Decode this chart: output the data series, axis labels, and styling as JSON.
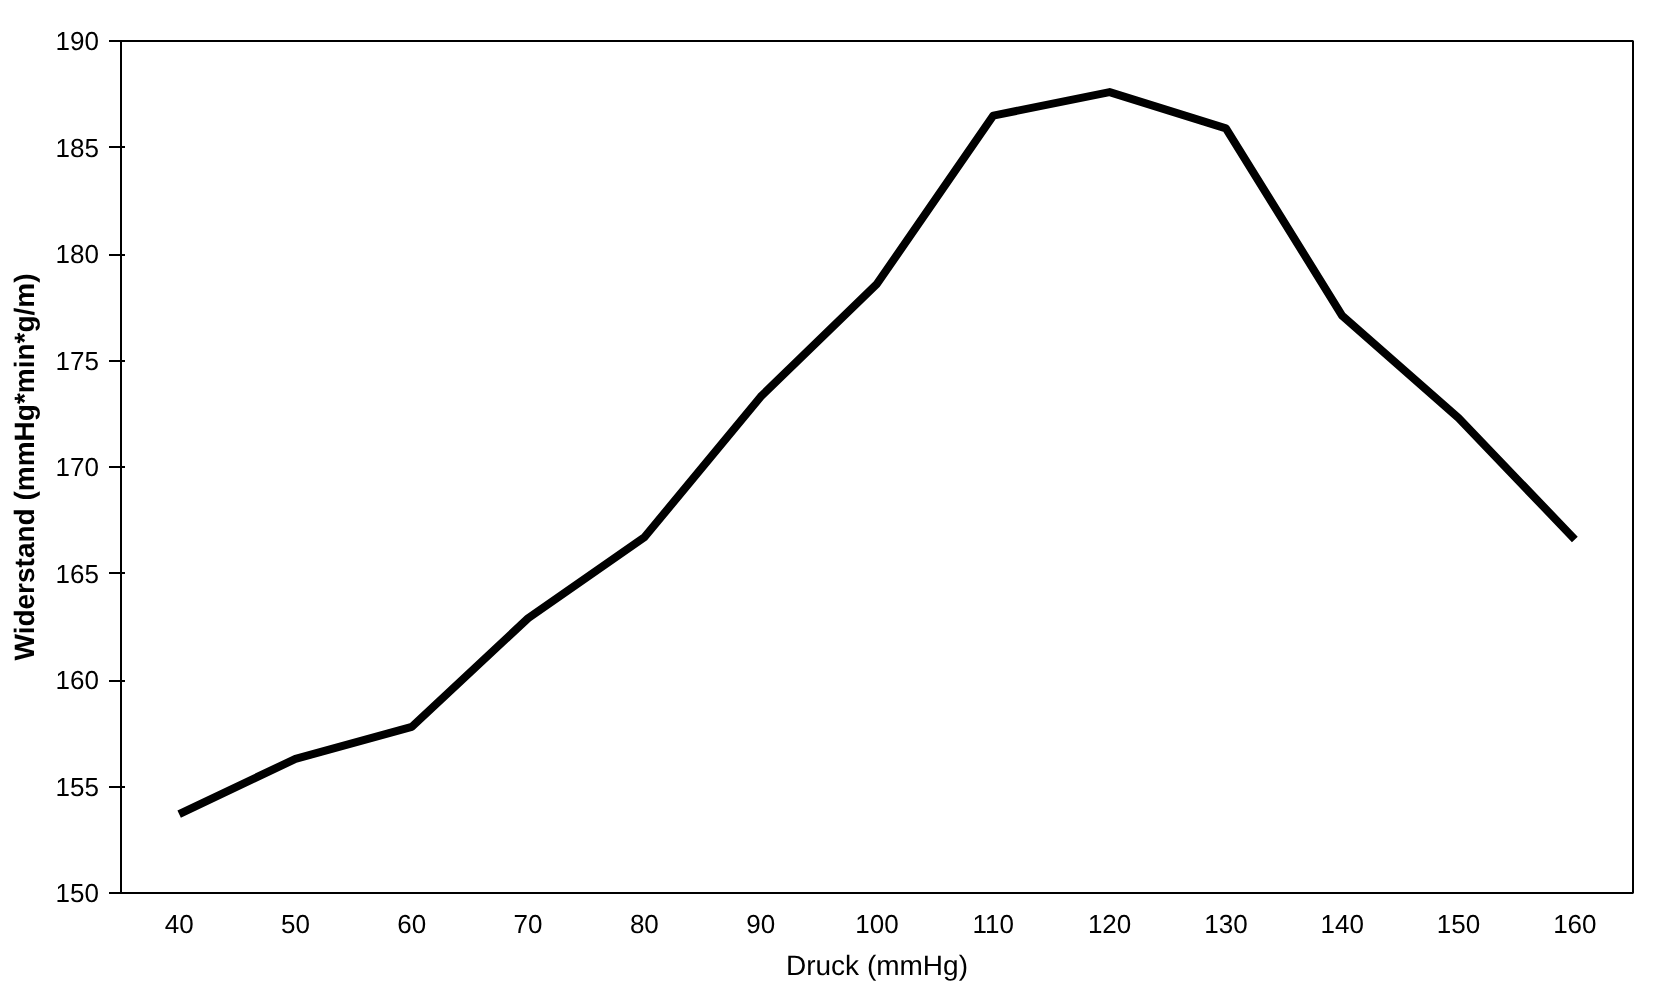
{
  "chart_data": {
    "type": "line",
    "xlabel": "Druck (mmHg)",
    "ylabel": "Widerstand (mmHg*min*g/m)",
    "categories": [
      "40",
      "50",
      "60",
      "70",
      "80",
      "90",
      "100",
      "110",
      "120",
      "130",
      "140",
      "150",
      "160"
    ],
    "series": [
      {
        "color": "#000000",
        "values": [
          153.7,
          156.3,
          157.8,
          162.9,
          166.7,
          173.3,
          178.6,
          186.5,
          187.6,
          185.9,
          177.1,
          172.3,
          166.6
        ]
      }
    ],
    "ylim": [
      150,
      190
    ],
    "yticks": [
      150,
      155,
      160,
      165,
      170,
      175,
      180,
      185,
      190
    ],
    "grid": false,
    "marker": "none",
    "line_style": "solid"
  }
}
